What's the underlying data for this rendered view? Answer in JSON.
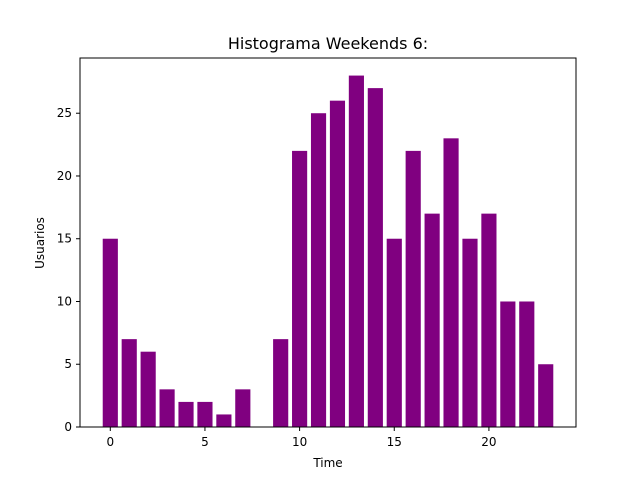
{
  "chart_data": {
    "type": "bar",
    "title": "Histograma Weekends 6:",
    "xlabel": "Time",
    "ylabel": "Usuarios",
    "x": [
      0,
      1,
      2,
      3,
      4,
      5,
      6,
      7,
      8,
      9,
      10,
      11,
      12,
      13,
      14,
      15,
      16,
      17,
      18,
      19,
      20,
      21,
      22,
      23
    ],
    "values": [
      15,
      7,
      6,
      3,
      2,
      2,
      1,
      3,
      0,
      7,
      22,
      25,
      26,
      28,
      27,
      15,
      22,
      17,
      23,
      15,
      17,
      10,
      10,
      5
    ],
    "bar_color": "#800080",
    "xlim": [
      -1.6,
      24.6
    ],
    "ylim": [
      0,
      29.4
    ],
    "xticks": [
      0,
      5,
      10,
      15,
      20
    ],
    "yticks": [
      0,
      5,
      10,
      15,
      20,
      25
    ],
    "grid": false,
    "legend": "none"
  }
}
